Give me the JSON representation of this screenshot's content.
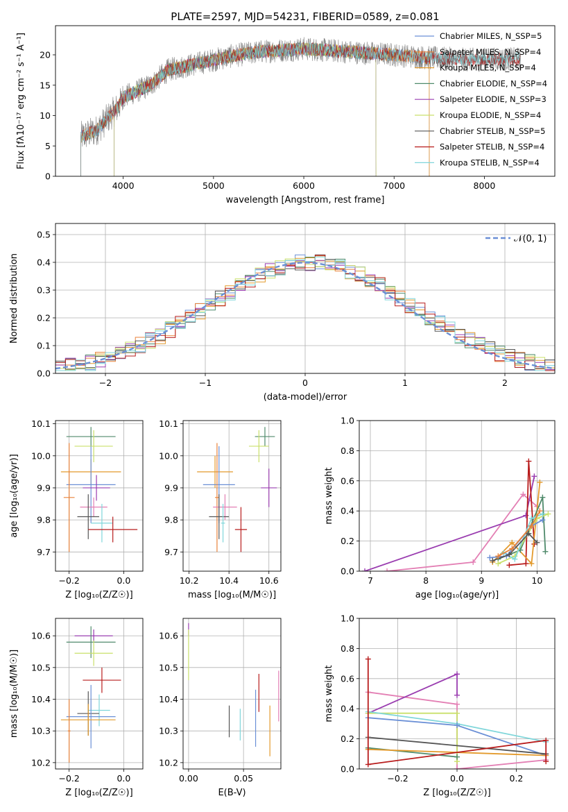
{
  "figure_title": "PLATE=2597, MJD=54231, FIBERID=0589, z=0.081",
  "palette": [
    "#6a8fd6",
    "#e8823a",
    "#e39a2c",
    "#4f8a6b",
    "#9a3db0",
    "#c9e06a",
    "#555555",
    "#b81c1c",
    "#7fd6da",
    "#e37fb4"
  ],
  "chart_data": [
    {
      "id": "spectrum",
      "type": "line",
      "title": "PLATE=2597, MJD=54231, FIBERID=0589, z=0.081",
      "xlabel": "wavelength [Angstrom, rest frame]",
      "ylabel": "Flux [fλ10⁻¹⁷ erg cm⁻² s⁻¹ A⁻¹]",
      "xlim": [
        3250,
        8780
      ],
      "ylim": [
        0,
        24.8
      ],
      "xticks": [
        4000,
        5000,
        6000,
        7000,
        8000
      ],
      "yticks": [
        0,
        5,
        10,
        15,
        20
      ],
      "grid": false,
      "legend_position": "right",
      "continuum": [
        [
          3530,
          6.5
        ],
        [
          3700,
          7.5
        ],
        [
          3950,
          11.5
        ],
        [
          4000,
          13
        ],
        [
          4300,
          15
        ],
        [
          4500,
          17.5
        ],
        [
          4800,
          18.5
        ],
        [
          5200,
          19.8
        ],
        [
          5500,
          20.5
        ],
        [
          6000,
          21
        ],
        [
          6500,
          20.5
        ],
        [
          7000,
          20
        ],
        [
          7400,
          19.5
        ],
        [
          7800,
          19.2
        ],
        [
          8400,
          19.3
        ]
      ],
      "data_end": 8400,
      "series": [
        {
          "name": "Chabrier MILES, N_SSP=5",
          "color": "#6a8fd6",
          "start": 3530,
          "end": 7390
        },
        {
          "name": "Salpeter MILES, N_SSP=4",
          "color": "#e8823a",
          "start": 3530,
          "end": 7390
        },
        {
          "name": "Kroupa MILES, N_SSP=4",
          "color": "#e39a2c",
          "start": 3530,
          "end": 7390
        },
        {
          "name": "Chabrier ELODIE, N_SSP=4",
          "color": "#4f8a6b",
          "start": 3900,
          "end": 6800
        },
        {
          "name": "Salpeter ELODIE, N_SSP=3",
          "color": "#9a3db0",
          "start": 3900,
          "end": 6800
        },
        {
          "name": "Kroupa ELODIE, N_SSP=4",
          "color": "#c9e06a",
          "start": 3900,
          "end": 6800
        },
        {
          "name": "Chabrier STELIB, N_SSP=5",
          "color": "#555555",
          "start": 3530,
          "end": 8400
        },
        {
          "name": "Salpeter STELIB, N_SSP=4",
          "color": "#b81c1c",
          "start": 3530,
          "end": 8400
        },
        {
          "name": "Kroupa STELIB, N_SSP=4",
          "color": "#7fd6da",
          "start": 3530,
          "end": 8400
        }
      ]
    },
    {
      "id": "residuals",
      "type": "line",
      "xlabel": "(data-model)/error",
      "ylabel": "Normed distribution",
      "xlim": [
        -2.5,
        2.5
      ],
      "ylim": [
        0,
        0.54
      ],
      "xticks": [
        -2,
        -1,
        0,
        1,
        2
      ],
      "yticks": [
        0.0,
        0.1,
        0.2,
        0.3,
        0.4,
        0.5
      ],
      "grid": true,
      "legend_position": "top-right",
      "legend_label": "𝒩(0, 1)",
      "bin_width": 0.1,
      "histogram_series_count": 9
    },
    {
      "id": "z_vs_age",
      "type": "scatter",
      "xlabel": "Z [log₁₀(Z/Z☉)]",
      "ylabel": "age  [log₁₀(age/yr)]",
      "xlim": [
        -0.25,
        0.07
      ],
      "ylim": [
        9.64,
        10.11
      ],
      "xticks": [
        -0.2,
        0.0
      ],
      "yticks": [
        9.7,
        9.8,
        9.9,
        10.0,
        10.1
      ],
      "grid": true,
      "points": [
        {
          "color": "#4f8a6b",
          "x": -0.12,
          "y": 10.06,
          "xerr": 0.09,
          "yerr": 0.03
        },
        {
          "color": "#c9e06a",
          "x": -0.11,
          "y": 10.03,
          "xerr": 0.07,
          "yerr": 0.05
        },
        {
          "color": "#e39a2c",
          "x": -0.12,
          "y": 9.95,
          "xerr": 0.11,
          "yerr": 0.04
        },
        {
          "color": "#6a8fd6",
          "x": -0.12,
          "y": 9.91,
          "xerr": 0.09,
          "yerr": 0.12
        },
        {
          "color": "#9a3db0",
          "x": -0.1,
          "y": 9.9,
          "xerr": 0.05,
          "yerr": 0.04
        },
        {
          "color": "#e8823a",
          "x": -0.2,
          "y": 9.87,
          "xerr": 0.02,
          "yerr": 0.17
        },
        {
          "color": "#e37fb4",
          "x": -0.11,
          "y": 9.84,
          "xerr": 0.05,
          "yerr": 0.03
        },
        {
          "color": "#555555",
          "x": -0.13,
          "y": 9.81,
          "xerr": 0.04,
          "yerr": 0.07
        },
        {
          "color": "#7fd6da",
          "x": -0.08,
          "y": 9.79,
          "xerr": 0.04,
          "yerr": 0.06
        },
        {
          "color": "#b81c1c",
          "x": -0.04,
          "y": 9.77,
          "xerr": 0.09,
          "yerr": 0.04
        }
      ]
    },
    {
      "id": "mass_vs_age",
      "type": "scatter",
      "xlabel": "mass [log₁₀(M/M☉)]",
      "ylabel": "",
      "xlim": [
        10.17,
        10.66
      ],
      "ylim": [
        9.64,
        10.11
      ],
      "xticks": [
        10.2,
        10.4,
        10.6
      ],
      "yticks": [
        9.7,
        9.8,
        9.9,
        10.0,
        10.1
      ],
      "grid": true,
      "points": [
        {
          "color": "#4f8a6b",
          "x": 10.58,
          "y": 10.06,
          "xerr": 0.05,
          "yerr": 0.03
        },
        {
          "color": "#c9e06a",
          "x": 10.55,
          "y": 10.03,
          "xerr": 0.05,
          "yerr": 0.05
        },
        {
          "color": "#e39a2c",
          "x": 10.33,
          "y": 9.95,
          "xerr": 0.09,
          "yerr": 0.05
        },
        {
          "color": "#6a8fd6",
          "x": 10.35,
          "y": 9.91,
          "xerr": 0.08,
          "yerr": 0.12
        },
        {
          "color": "#9a3db0",
          "x": 10.6,
          "y": 9.9,
          "xerr": 0.04,
          "yerr": 0.06
        },
        {
          "color": "#e8823a",
          "x": 10.34,
          "y": 9.87,
          "xerr": 0.01,
          "yerr": 0.17
        },
        {
          "color": "#e37fb4",
          "x": 10.38,
          "y": 9.84,
          "xerr": 0.06,
          "yerr": 0.04
        },
        {
          "color": "#555555",
          "x": 10.35,
          "y": 9.81,
          "xerr": 0.05,
          "yerr": 0.07
        },
        {
          "color": "#7fd6da",
          "x": 10.37,
          "y": 9.79,
          "xerr": 0.01,
          "yerr": 0.06
        },
        {
          "color": "#b81c1c",
          "x": 10.46,
          "y": 9.77,
          "xerr": 0.03,
          "yerr": 0.07
        }
      ]
    },
    {
      "id": "age_vs_weight",
      "type": "line",
      "xlabel": "age  [log₁₀(age/yr)]",
      "ylabel": "mass weight",
      "xlim": [
        6.8,
        10.32
      ],
      "ylim": [
        0,
        1
      ],
      "xticks": [
        7,
        8,
        9,
        10
      ],
      "yticks": [
        0.0,
        0.2,
        0.4,
        0.6,
        0.8,
        1.0
      ],
      "grid": true,
      "series": [
        {
          "color": "#e37fb4",
          "points": [
            [
              7.3,
              0.0
            ],
            [
              8.85,
              0.06
            ],
            [
              9.75,
              0.51
            ],
            [
              10.0,
              0.43
            ]
          ]
        },
        {
          "color": "#9a3db0",
          "points": [
            [
              6.9,
              0.0
            ],
            [
              9.8,
              0.37
            ],
            [
              9.95,
              0.63
            ]
          ]
        },
        {
          "color": "#b81c1c",
          "points": [
            [
              9.5,
              0.04
            ],
            [
              9.8,
              0.05
            ],
            [
              9.85,
              0.73
            ],
            [
              9.95,
              0.18
            ]
          ]
        },
        {
          "color": "#e39a2c",
          "points": [
            [
              9.2,
              0.06
            ],
            [
              9.55,
              0.19
            ],
            [
              9.9,
              0.05
            ],
            [
              10.05,
              0.59
            ]
          ]
        },
        {
          "color": "#4f8a6b",
          "points": [
            [
              9.3,
              0.08
            ],
            [
              9.7,
              0.14
            ],
            [
              10.1,
              0.49
            ],
            [
              10.15,
              0.13
            ]
          ]
        },
        {
          "color": "#c9e06a",
          "points": [
            [
              9.3,
              0.05
            ],
            [
              9.6,
              0.1
            ],
            [
              10.0,
              0.35
            ],
            [
              10.2,
              0.38
            ]
          ]
        },
        {
          "color": "#7fd6da",
          "points": [
            [
              9.4,
              0.12
            ],
            [
              9.6,
              0.08
            ],
            [
              9.9,
              0.35
            ],
            [
              10.1,
              0.38
            ]
          ]
        },
        {
          "color": "#6a8fd6",
          "points": [
            [
              9.15,
              0.09
            ],
            [
              9.45,
              0.1
            ],
            [
              9.9,
              0.3
            ],
            [
              10.1,
              0.34
            ]
          ]
        },
        {
          "color": "#555555",
          "points": [
            [
              9.2,
              0.07
            ],
            [
              9.5,
              0.11
            ],
            [
              9.85,
              0.25
            ],
            [
              10.0,
              0.19
            ]
          ]
        },
        {
          "color": "#e8823a",
          "points": [
            [
              9.3,
              0.1
            ],
            [
              9.55,
              0.15
            ],
            [
              9.9,
              0.3
            ],
            [
              10.05,
              0.4
            ]
          ]
        }
      ]
    },
    {
      "id": "z_vs_mass",
      "type": "scatter",
      "xlabel": "Z [log₁₀(Z/Z☉)]",
      "ylabel": "mass [log₁₀(M/M☉)]",
      "xlim": [
        -0.25,
        0.07
      ],
      "ylim": [
        10.18,
        10.655
      ],
      "xticks": [
        -0.2,
        0.0
      ],
      "yticks": [
        10.2,
        10.3,
        10.4,
        10.5,
        10.6
      ],
      "grid": true,
      "points": [
        {
          "color": "#9a3db0",
          "x": -0.11,
          "y": 10.6,
          "xerr": 0.07,
          "yerr": 0.02
        },
        {
          "color": "#4f8a6b",
          "x": -0.12,
          "y": 10.58,
          "xerr": 0.09,
          "yerr": 0.05
        },
        {
          "color": "#c9e06a",
          "x": -0.11,
          "y": 10.545,
          "xerr": 0.07,
          "yerr": 0.04
        },
        {
          "color": "#b81c1c",
          "x": -0.08,
          "y": 10.46,
          "xerr": 0.07,
          "yerr": 0.04
        },
        {
          "color": "#7fd6da",
          "x": -0.09,
          "y": 10.365,
          "xerr": 0.04,
          "yerr": 0.05
        },
        {
          "color": "#555555",
          "x": -0.13,
          "y": 10.355,
          "xerr": 0.04,
          "yerr": 0.07
        },
        {
          "color": "#6a8fd6",
          "x": -0.12,
          "y": 10.345,
          "xerr": 0.09,
          "yerr": 0.1
        },
        {
          "color": "#e39a2c",
          "x": -0.13,
          "y": 10.335,
          "xerr": 0.1,
          "yerr": 0.05
        },
        {
          "color": "#e8823a",
          "x": -0.2,
          "y": 10.3,
          "xerr": 0.005,
          "yerr": 0.1
        }
      ]
    },
    {
      "id": "ebv_vs_mass",
      "type": "scatter",
      "xlabel": "E(B-V)",
      "ylabel": "",
      "xlim": [
        -0.005,
        0.084
      ],
      "ylim": [
        10.18,
        10.655
      ],
      "xticks": [
        0.0,
        0.05
      ],
      "yticks": [
        10.2,
        10.3,
        10.4,
        10.5,
        10.6
      ],
      "grid": true,
      "points": [
        {
          "color": "#9a3db0",
          "x": 0.0,
          "y": 10.62,
          "xerr": 0,
          "yerr": 0.02
        },
        {
          "color": "#c9e06a",
          "x": 0.0,
          "y": 10.54,
          "xerr": 0,
          "yerr": 0.08
        },
        {
          "color": "#555555",
          "x": 0.037,
          "y": 10.33,
          "xerr": 0,
          "yerr": 0.05
        },
        {
          "color": "#7fd6da",
          "x": 0.047,
          "y": 10.32,
          "xerr": 0,
          "yerr": 0.05
        },
        {
          "color": "#6a8fd6",
          "x": 0.061,
          "y": 10.34,
          "xerr": 0,
          "yerr": 0.09
        },
        {
          "color": "#b81c1c",
          "x": 0.064,
          "y": 10.42,
          "xerr": 0,
          "yerr": 0.06
        },
        {
          "color": "#e39a2c",
          "x": 0.074,
          "y": 10.3,
          "xerr": 0,
          "yerr": 0.08
        },
        {
          "color": "#e37fb4",
          "x": 0.082,
          "y": 10.41,
          "xerr": 0,
          "yerr": 0.08
        }
      ]
    },
    {
      "id": "z_vs_weight",
      "type": "line",
      "xlabel": "Z [log₁₀(Z/Z☉)]",
      "ylabel": "mass weight",
      "xlim": [
        -0.33,
        0.33
      ],
      "ylim": [
        0,
        1
      ],
      "xticks": [
        -0.2,
        0.0,
        0.2
      ],
      "yticks": [
        0.0,
        0.2,
        0.4,
        0.6,
        0.8,
        1.0
      ],
      "grid": true,
      "series": [
        {
          "color": "#e37fb4",
          "points": [
            [
              -0.3,
              0.51
            ],
            [
              0.0,
              0.43
            ],
            [
              0.0,
              0.0
            ],
            [
              0.3,
              0.06
            ]
          ]
        },
        {
          "color": "#9a3db0",
          "points": [
            [
              -0.3,
              0.37
            ],
            [
              0.0,
              0.63
            ],
            [
              0.0,
              0.49
            ]
          ]
        },
        {
          "color": "#c9e06a",
          "points": [
            [
              -0.3,
              0.37
            ],
            [
              0.0,
              0.37
            ],
            [
              0.0,
              0.05
            ]
          ]
        },
        {
          "color": "#7fd6da",
          "points": [
            [
              -0.3,
              0.38
            ],
            [
              0.0,
              0.3
            ],
            [
              0.3,
              0.18
            ]
          ]
        },
        {
          "color": "#6a8fd6",
          "points": [
            [
              -0.3,
              0.34
            ],
            [
              0.0,
              0.29
            ],
            [
              0.3,
              0.09
            ]
          ]
        },
        {
          "color": "#555555",
          "points": [
            [
              -0.3,
              0.21
            ],
            [
              0.3,
              0.1
            ]
          ]
        },
        {
          "color": "#4f8a6b",
          "points": [
            [
              -0.3,
              0.14
            ],
            [
              0.0,
              0.08
            ]
          ]
        },
        {
          "color": "#e39a2c",
          "points": [
            [
              -0.3,
              0.13
            ],
            [
              0.3,
              0.09
            ]
          ]
        },
        {
          "color": "#b81c1c",
          "points": [
            [
              -0.3,
              0.73
            ],
            [
              -0.3,
              0.03
            ],
            [
              0.3,
              0.19
            ],
            [
              0.3,
              0.05
            ]
          ]
        }
      ]
    }
  ]
}
